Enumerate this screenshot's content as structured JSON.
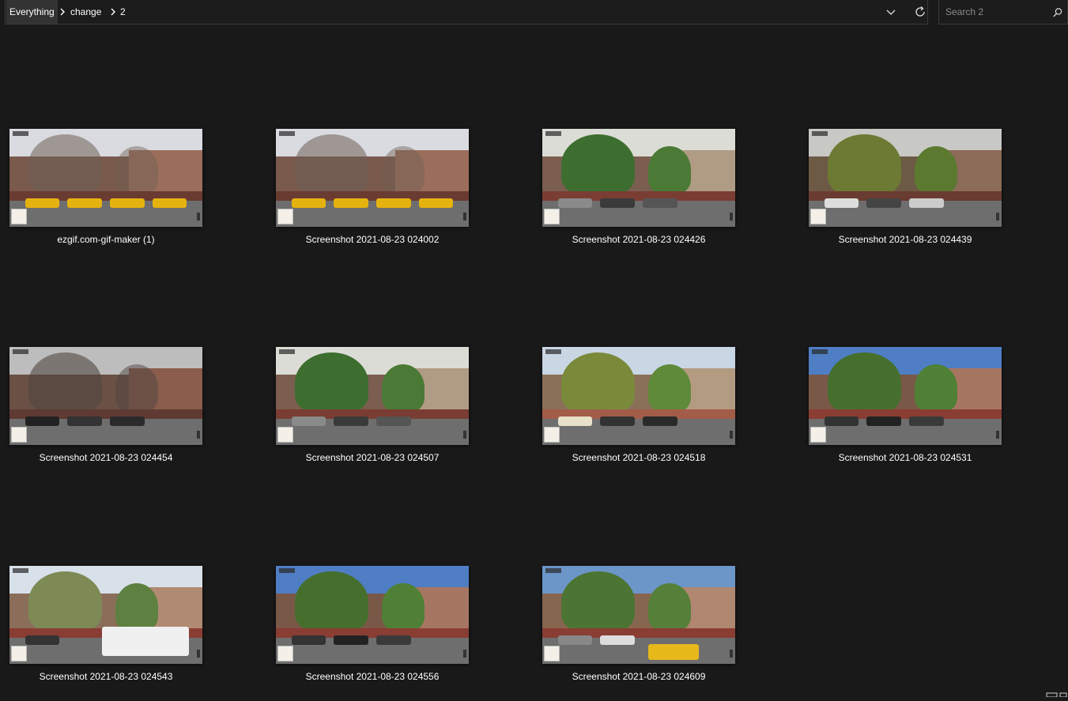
{
  "breadcrumb": {
    "items": [
      "Everything",
      "change",
      "2"
    ]
  },
  "controls": {
    "dropdown_icon": "chevron-down-icon",
    "refresh_icon": "refresh-icon"
  },
  "search": {
    "placeholder": "Search 2",
    "value": "",
    "icon": "search-icon"
  },
  "files": [
    {
      "name": "ezgif.com-gif-maker (1)",
      "scene": "winter"
    },
    {
      "name": "Screenshot 2021-08-23 024002",
      "scene": "winter"
    },
    {
      "name": "Screenshot 2021-08-23 024426",
      "scene": "summer"
    },
    {
      "name": "Screenshot 2021-08-23 024439",
      "scene": "autumn"
    },
    {
      "name": "Screenshot 2021-08-23 024454",
      "scene": "overcast"
    },
    {
      "name": "Screenshot 2021-08-23 024507",
      "scene": "summer"
    },
    {
      "name": "Screenshot 2021-08-23 024518",
      "scene": "clouds"
    },
    {
      "name": "Screenshot 2021-08-23 024531",
      "scene": "bluesky"
    },
    {
      "name": "Screenshot 2021-08-23 024543",
      "scene": "van"
    },
    {
      "name": "Screenshot 2021-08-23 024556",
      "scene": "bluesky"
    },
    {
      "name": "Screenshot 2021-08-23 024609",
      "scene": "taxi"
    }
  ],
  "colors": {
    "background": "#191919",
    "border": "#3a3a3a",
    "crumb_active": "#333333",
    "text": "#ffffff",
    "placeholder": "#8a8a8a"
  }
}
